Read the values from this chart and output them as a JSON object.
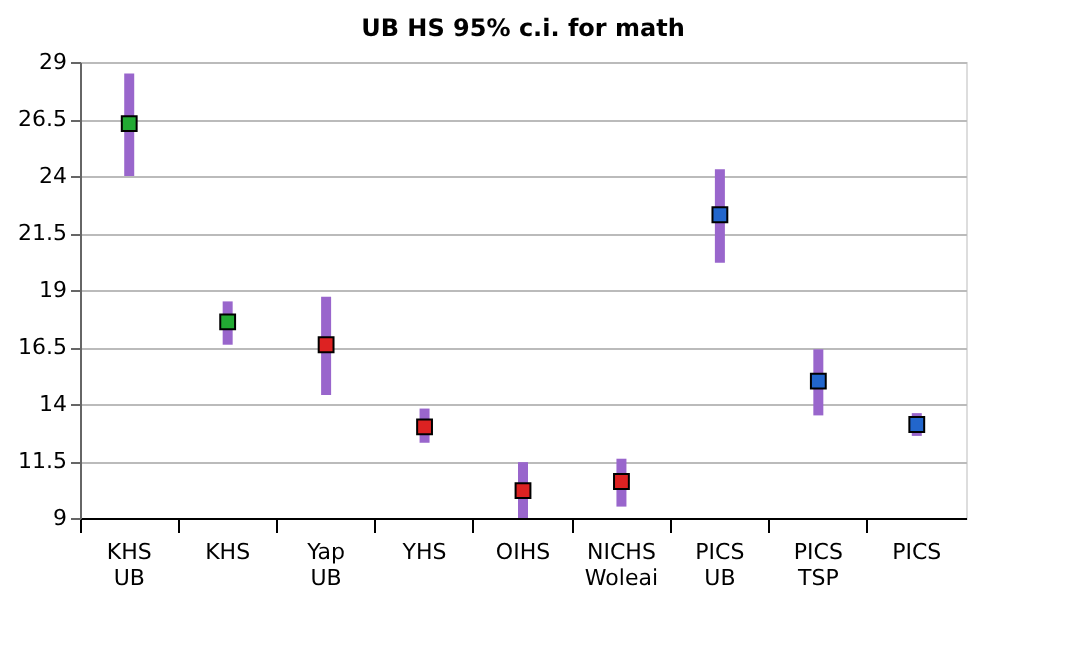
{
  "chart_data": {
    "type": "scatter",
    "title": "UB HS 95% c.i. for math",
    "categories": [
      "KHS UB",
      "KHS",
      "Yap UB",
      "YHS",
      "OIHS",
      "NICHS Woleai",
      "PICS UB",
      "PICS TSP",
      "PICS"
    ],
    "values": [
      26.3,
      17.6,
      16.6,
      13.0,
      10.2,
      10.6,
      22.3,
      15.0,
      13.1
    ],
    "colors": [
      "#22aa33",
      "#22aa33",
      "#dd2222",
      "#dd2222",
      "#dd2222",
      "#dd2222",
      "#2266cc",
      "#2266cc",
      "#2266cc"
    ],
    "errors": [
      [
        24.0,
        28.5
      ],
      [
        16.6,
        18.5
      ],
      [
        14.4,
        18.7
      ],
      [
        12.3,
        13.8
      ],
      [
        9.0,
        11.45
      ],
      [
        9.5,
        11.6
      ],
      [
        20.2,
        24.3
      ],
      [
        13.5,
        16.4
      ],
      [
        12.6,
        13.6
      ]
    ],
    "ylim": [
      9,
      29
    ],
    "yticks": [
      9,
      11.5,
      14,
      16.5,
      19,
      21.5,
      24,
      26.5,
      29
    ],
    "grid": "y",
    "marker": "square"
  }
}
